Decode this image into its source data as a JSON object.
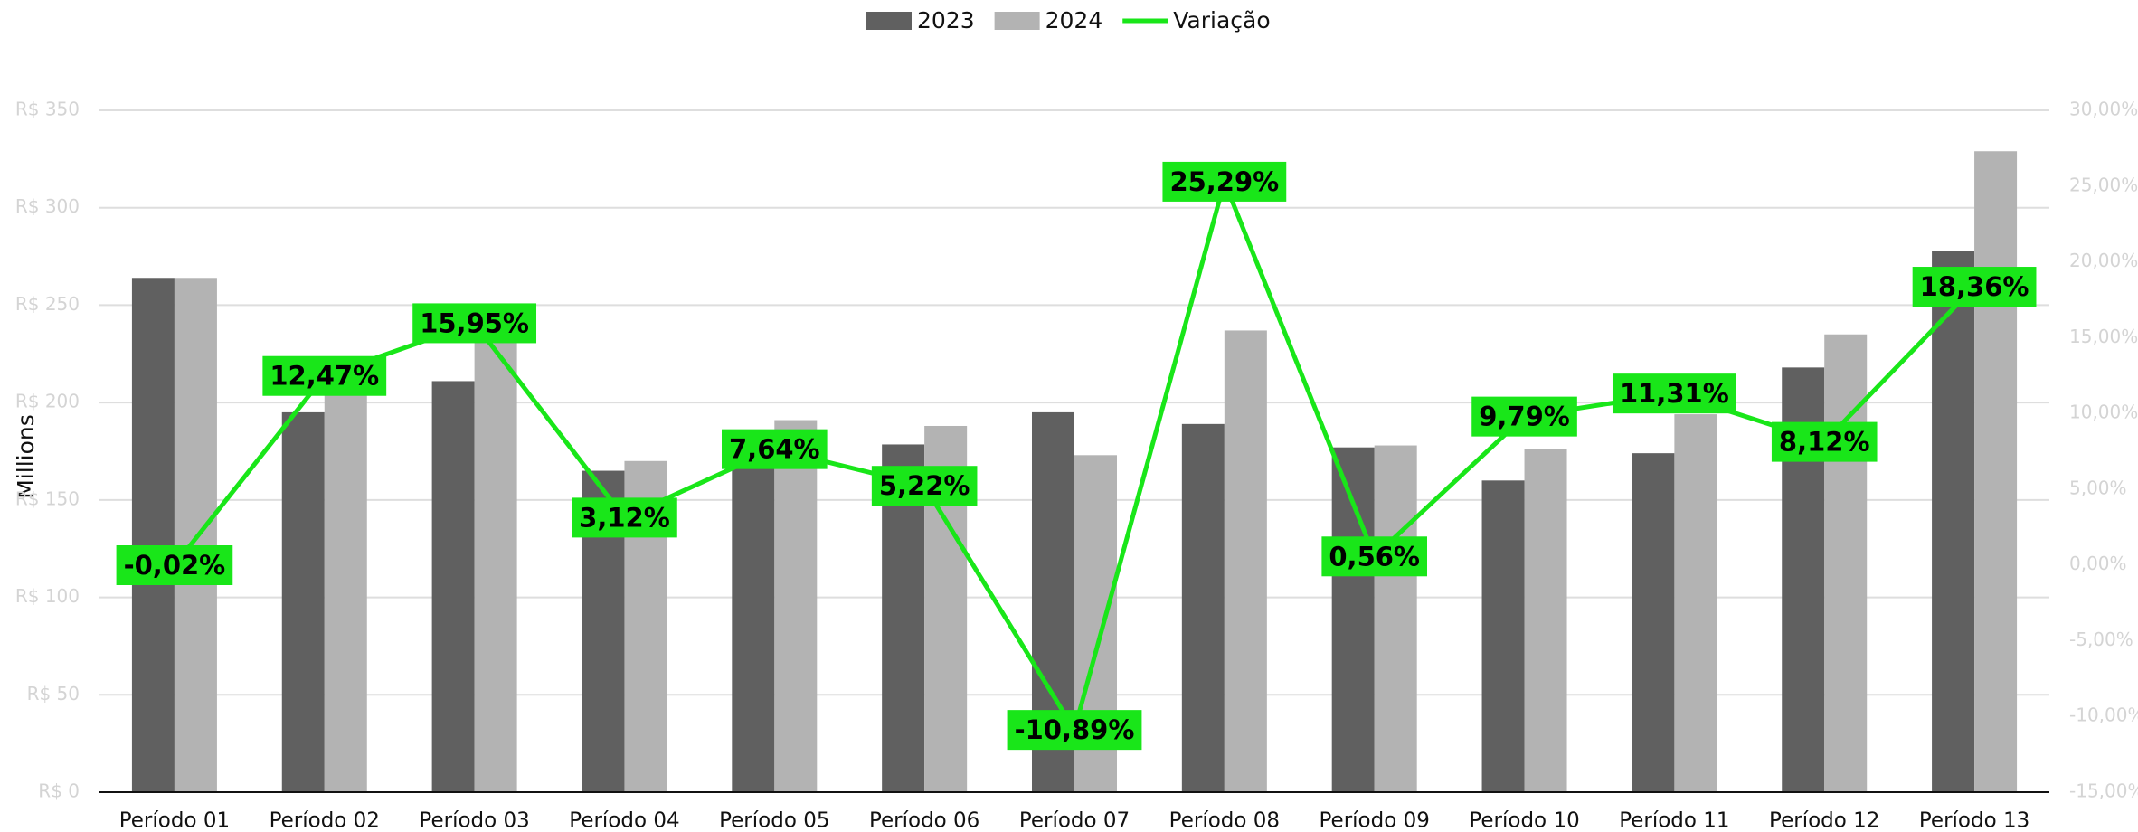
{
  "chart_data": {
    "type": "bar",
    "y_label": "Millions",
    "categories": [
      "Período 01",
      "Período 02",
      "Período 03",
      "Período 04",
      "Período 05",
      "Período 06",
      "Período 07",
      "Período 08",
      "Período 09",
      "Período 10",
      "Período 11",
      "Período 12",
      "Período 13"
    ],
    "series": [
      {
        "name": "2023",
        "color": "#606060",
        "values": [
          264,
          195,
          211,
          165,
          178,
          178.5,
          195,
          189,
          177,
          160,
          174,
          218,
          278
        ]
      },
      {
        "name": "2024",
        "color": "#b3b3b3",
        "values": [
          264,
          219,
          245,
          170,
          191,
          188,
          173,
          237,
          178,
          176,
          194,
          235,
          329
        ]
      },
      {
        "name": "Variação",
        "type": "line",
        "axis": "y2",
        "color": "#19e619",
        "values": [
          -0.02,
          12.47,
          15.95,
          3.12,
          7.64,
          5.22,
          -10.89,
          25.29,
          0.56,
          9.79,
          11.31,
          8.12,
          18.36
        ],
        "value_labels": [
          "-0,02%",
          "12,47%",
          "15,95%",
          "3,12%",
          "7,64%",
          "5,22%",
          "-10,89%",
          "25,29%",
          "0,56%",
          "9,79%",
          "11,31%",
          "8,12%",
          "18,36%"
        ]
      }
    ],
    "ylim": [
      0,
      350
    ],
    "yticks": [
      {
        "value": 0,
        "label": "R$ 0"
      },
      {
        "value": 50,
        "label": "R$ 50"
      },
      {
        "value": 100,
        "label": "R$ 100"
      },
      {
        "value": 150,
        "label": "R$ 150"
      },
      {
        "value": 200,
        "label": "R$ 200"
      },
      {
        "value": 250,
        "label": "R$ 250"
      },
      {
        "value": 300,
        "label": "R$ 300"
      },
      {
        "value": 350,
        "label": "R$ 350"
      }
    ],
    "y2lim": [
      -15,
      30
    ],
    "y2ticks": [
      {
        "value": -15,
        "label": "-15,00%"
      },
      {
        "value": -10,
        "label": "-10,00%"
      },
      {
        "value": -5,
        "label": "-5,00%"
      },
      {
        "value": 0,
        "label": "0,00%"
      },
      {
        "value": 5,
        "label": "5,00%"
      },
      {
        "value": 10,
        "label": "10,00%"
      },
      {
        "value": 15,
        "label": "15,00%"
      },
      {
        "value": 20,
        "label": "20,00%"
      },
      {
        "value": 25,
        "label": "25,00%"
      },
      {
        "value": 30,
        "label": "30,00%"
      }
    ],
    "grid": true,
    "legend": "top"
  }
}
